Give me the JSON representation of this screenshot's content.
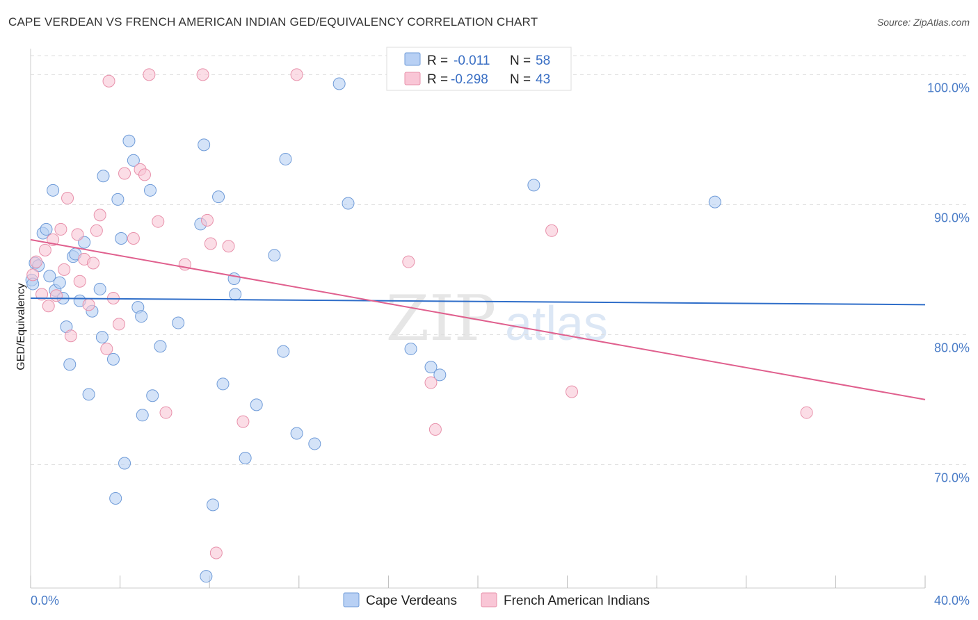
{
  "title": "CAPE VERDEAN VS FRENCH AMERICAN INDIAN GED/EQUIVALENCY CORRELATION CHART",
  "source": "Source: ZipAtlas.com",
  "watermark": {
    "zip": "ZIP",
    "atlas": "atlas"
  },
  "colors": {
    "blue_fill": "#b8d0f4",
    "blue_stroke": "#6f9bd8",
    "blue_line": "#2f6ec9",
    "pink_fill": "#f9c6d6",
    "pink_stroke": "#e891ab",
    "pink_line": "#e0608e",
    "tick": "#4a7cc7",
    "grid": "#dddddd"
  },
  "legend": {
    "rows": [
      {
        "r_label": "R =",
        "r_value": "-0.011",
        "n_label": "N =",
        "n_value": "58"
      },
      {
        "r_label": "R =",
        "r_value": "-0.298",
        "n_label": "N =",
        "n_value": "43"
      }
    ]
  },
  "chart_data": {
    "type": "scatter",
    "title": "CAPE VERDEAN VS FRENCH AMERICAN INDIAN GED/EQUIVALENCY CORRELATION CHART",
    "xlabel": "",
    "ylabel": "GED/Equivalency",
    "xlim": [
      0,
      40
    ],
    "ylim": [
      60.5,
      102
    ],
    "x_tick_labels": [
      "0.0%",
      "40.0%"
    ],
    "y_ticks": [
      {
        "value": 100,
        "label": "100.0%"
      },
      {
        "value": 90,
        "label": "90.0%"
      },
      {
        "value": 80,
        "label": "80.0%"
      },
      {
        "value": 70,
        "label": "70.0%"
      }
    ],
    "grid": true,
    "legend_position": "top-center",
    "series": [
      {
        "name": "Cape Verdeans",
        "color": "#b8d0f4",
        "trend": {
          "x": [
            0,
            40
          ],
          "y": [
            82.8,
            82.3
          ]
        },
        "points": [
          [
            0.05,
            84.2
          ],
          [
            0.2,
            85.5
          ],
          [
            0.35,
            85.3
          ],
          [
            0.55,
            87.8
          ],
          [
            0.7,
            88.1
          ],
          [
            0.85,
            84.5
          ],
          [
            1.0,
            91.1
          ],
          [
            1.1,
            83.4
          ],
          [
            1.3,
            84.0
          ],
          [
            1.45,
            82.8
          ],
          [
            1.6,
            80.6
          ],
          [
            1.75,
            77.7
          ],
          [
            1.9,
            86.0
          ],
          [
            2.0,
            86.2
          ],
          [
            2.2,
            82.6
          ],
          [
            2.4,
            87.1
          ],
          [
            2.6,
            75.4
          ],
          [
            2.75,
            81.8
          ],
          [
            3.1,
            83.5
          ],
          [
            3.2,
            79.8
          ],
          [
            3.25,
            92.2
          ],
          [
            3.7,
            78.1
          ],
          [
            3.8,
            67.4
          ],
          [
            3.9,
            90.4
          ],
          [
            4.05,
            87.4
          ],
          [
            4.2,
            70.1
          ],
          [
            4.4,
            94.9
          ],
          [
            4.6,
            93.4
          ],
          [
            4.8,
            82.1
          ],
          [
            4.95,
            81.4
          ],
          [
            5.0,
            73.8
          ],
          [
            5.35,
            91.1
          ],
          [
            5.45,
            75.3
          ],
          [
            5.8,
            79.1
          ],
          [
            6.6,
            80.9
          ],
          [
            7.6,
            88.5
          ],
          [
            7.75,
            94.6
          ],
          [
            7.85,
            61.4
          ],
          [
            8.15,
            66.9
          ],
          [
            8.4,
            90.6
          ],
          [
            8.6,
            76.2
          ],
          [
            9.1,
            84.3
          ],
          [
            9.15,
            83.1
          ],
          [
            9.6,
            70.5
          ],
          [
            10.1,
            74.6
          ],
          [
            10.9,
            86.1
          ],
          [
            11.3,
            78.7
          ],
          [
            11.4,
            93.5
          ],
          [
            11.9,
            72.4
          ],
          [
            12.7,
            71.6
          ],
          [
            13.8,
            99.3
          ],
          [
            14.2,
            90.1
          ],
          [
            17.0,
            78.9
          ],
          [
            17.9,
            77.5
          ],
          [
            18.3,
            76.9
          ],
          [
            22.5,
            91.5
          ],
          [
            30.6,
            90.2
          ],
          [
            0.1,
            83.9
          ]
        ]
      },
      {
        "name": "French American Indians",
        "color": "#f9c6d6",
        "trend": {
          "x": [
            0,
            40
          ],
          "y": [
            87.3,
            75.0
          ]
        },
        "points": [
          [
            0.1,
            84.6
          ],
          [
            0.25,
            85.6
          ],
          [
            0.5,
            83.1
          ],
          [
            0.65,
            86.5
          ],
          [
            0.8,
            82.2
          ],
          [
            1.0,
            87.3
          ],
          [
            1.15,
            83.0
          ],
          [
            1.35,
            88.1
          ],
          [
            1.5,
            85.0
          ],
          [
            1.65,
            90.5
          ],
          [
            1.8,
            79.9
          ],
          [
            2.1,
            87.7
          ],
          [
            2.2,
            84.1
          ],
          [
            2.4,
            85.8
          ],
          [
            2.6,
            82.3
          ],
          [
            2.8,
            85.5
          ],
          [
            2.95,
            88.0
          ],
          [
            3.1,
            89.2
          ],
          [
            3.4,
            78.9
          ],
          [
            3.5,
            99.5
          ],
          [
            3.7,
            82.8
          ],
          [
            3.95,
            80.8
          ],
          [
            4.2,
            92.4
          ],
          [
            4.6,
            87.4
          ],
          [
            4.9,
            92.7
          ],
          [
            5.1,
            92.3
          ],
          [
            5.3,
            100.0
          ],
          [
            5.7,
            88.7
          ],
          [
            6.05,
            74.0
          ],
          [
            6.9,
            85.4
          ],
          [
            7.7,
            100.0
          ],
          [
            7.9,
            88.8
          ],
          [
            8.05,
            87.0
          ],
          [
            8.3,
            63.2
          ],
          [
            8.85,
            86.8
          ],
          [
            9.5,
            73.3
          ],
          [
            11.9,
            100.0
          ],
          [
            16.9,
            85.6
          ],
          [
            17.9,
            76.3
          ],
          [
            18.1,
            72.7
          ],
          [
            23.3,
            88.0
          ],
          [
            24.2,
            75.6
          ],
          [
            34.7,
            74.0
          ]
        ]
      }
    ]
  }
}
